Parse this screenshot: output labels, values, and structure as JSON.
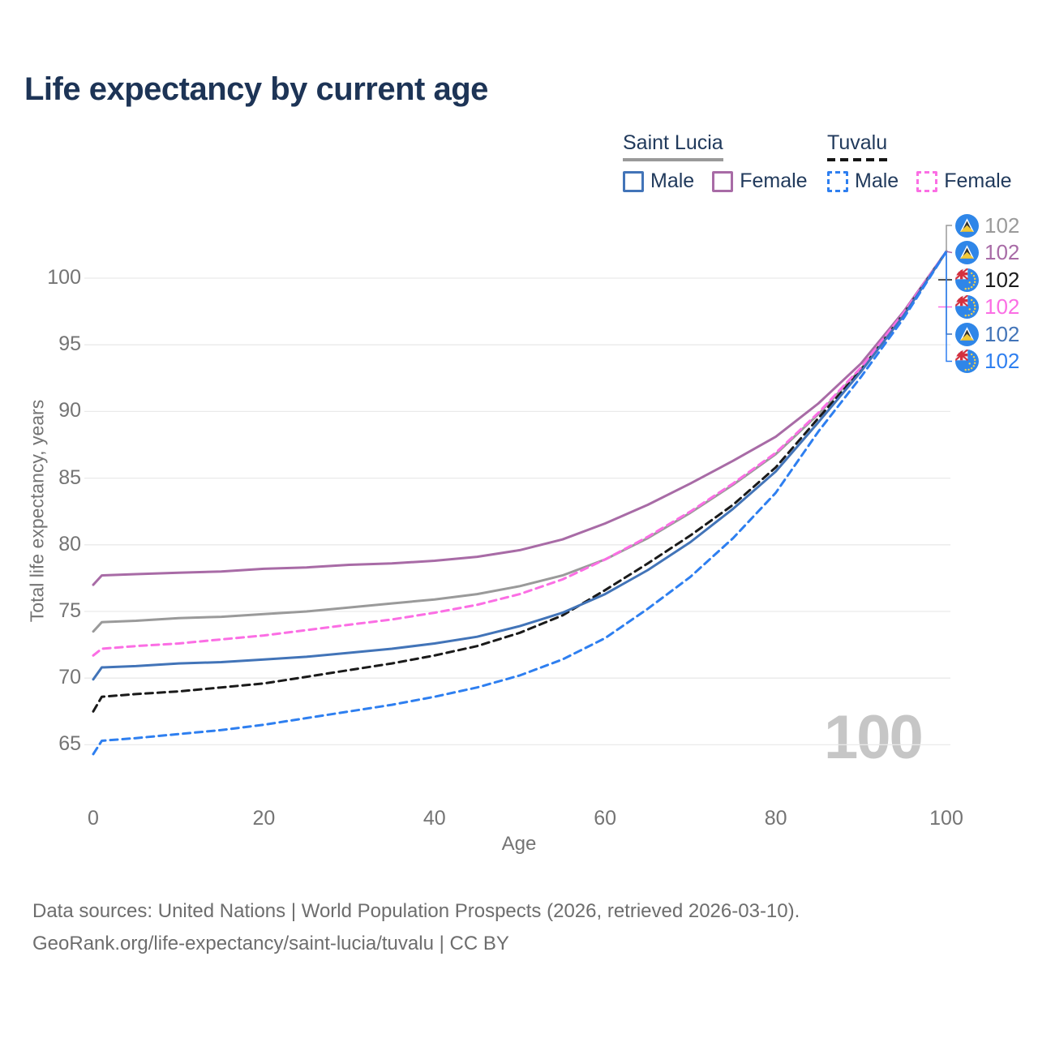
{
  "page": {
    "title": "Life expectancy by current age",
    "footer_line1": "Data sources: United Nations | World Population Prospects (2026, retrieved 2026-03-10).",
    "footer_line2": "GeoRank.org/life-expectancy/saint-lucia/tuvalu | CC BY"
  },
  "legend": {
    "groups": [
      {
        "label": "Saint Lucia",
        "underline_style": "solid",
        "underline_color": "#9a9a9a",
        "items": [
          {
            "label": "Male",
            "color": "#4274b8",
            "dash": "solid"
          },
          {
            "label": "Female",
            "color": "#a86ba6",
            "dash": "solid"
          }
        ]
      },
      {
        "label": "Tuvalu",
        "underline_style": "dashed",
        "underline_color": "#161616",
        "items": [
          {
            "label": "Male",
            "color": "#2e7ff0",
            "dash": "dashed"
          },
          {
            "label": "Female",
            "color": "#fb6ee4",
            "dash": "dashed"
          }
        ]
      }
    ]
  },
  "chart_data": {
    "type": "line",
    "title": "Life expectancy by current age",
    "xlabel": "Age",
    "ylabel": "Total life expectancy, years",
    "xlim": [
      0,
      100
    ],
    "ylim": [
      62,
      103
    ],
    "xticks": [
      0,
      20,
      40,
      60,
      80,
      100
    ],
    "yticks": [
      65,
      70,
      75,
      80,
      85,
      90,
      95,
      100
    ],
    "grid": "horizontal",
    "legend_position": "top-right",
    "age_cursor_label": "100",
    "x": [
      0,
      1,
      5,
      10,
      15,
      20,
      25,
      30,
      35,
      40,
      45,
      50,
      55,
      60,
      65,
      70,
      75,
      80,
      85,
      90,
      95,
      100
    ],
    "series": [
      {
        "id": "saint-lucia-total",
        "name": "Saint Lucia (both sexes)",
        "country": "Saint Lucia",
        "flag": "saint-lucia",
        "color": "#9a9a9a",
        "dash": "solid",
        "end_label": "102",
        "values": [
          73.5,
          74.2,
          74.3,
          74.5,
          74.6,
          74.8,
          75.0,
          75.3,
          75.6,
          75.9,
          76.3,
          76.9,
          77.7,
          78.9,
          80.5,
          82.4,
          84.5,
          86.8,
          89.8,
          93.2,
          97.3,
          102
        ]
      },
      {
        "id": "saint-lucia-female",
        "name": "Saint Lucia Female",
        "country": "Saint Lucia",
        "flag": "saint-lucia",
        "color": "#a86ba6",
        "dash": "solid",
        "end_label": "102",
        "values": [
          77.0,
          77.7,
          77.8,
          77.9,
          78.0,
          78.2,
          78.3,
          78.5,
          78.6,
          78.8,
          79.1,
          79.6,
          80.4,
          81.6,
          83.0,
          84.6,
          86.3,
          88.1,
          90.6,
          93.6,
          97.5,
          102
        ]
      },
      {
        "id": "tuvalu-total",
        "name": "Tuvalu (both sexes)",
        "country": "Tuvalu",
        "flag": "tuvalu",
        "color": "#1a1a1a",
        "dash": "dashed",
        "end_label": "102",
        "values": [
          67.5,
          68.6,
          68.8,
          69.0,
          69.3,
          69.6,
          70.1,
          70.6,
          71.1,
          71.7,
          72.4,
          73.4,
          74.7,
          76.6,
          78.6,
          80.7,
          83.0,
          85.8,
          89.5,
          93.1,
          97.3,
          102
        ]
      },
      {
        "id": "tuvalu-female",
        "name": "Tuvalu Female",
        "country": "Tuvalu",
        "flag": "tuvalu",
        "color": "#fb6ee4",
        "dash": "dashed",
        "end_label": "102",
        "values": [
          71.7,
          72.2,
          72.4,
          72.6,
          72.9,
          73.2,
          73.6,
          74.0,
          74.4,
          74.9,
          75.5,
          76.3,
          77.4,
          78.9,
          80.6,
          82.5,
          84.6,
          86.9,
          89.9,
          93.3,
          97.4,
          102
        ]
      },
      {
        "id": "saint-lucia-male",
        "name": "Saint Lucia Male",
        "country": "Saint Lucia",
        "flag": "saint-lucia",
        "color": "#4274b8",
        "dash": "solid",
        "end_label": "102",
        "values": [
          69.9,
          70.8,
          70.9,
          71.1,
          71.2,
          71.4,
          71.6,
          71.9,
          72.2,
          72.6,
          73.1,
          73.9,
          74.9,
          76.3,
          78.1,
          80.2,
          82.7,
          85.5,
          89.2,
          93.0,
          97.2,
          102
        ]
      },
      {
        "id": "tuvalu-male",
        "name": "Tuvalu Male",
        "country": "Tuvalu",
        "flag": "tuvalu",
        "color": "#2e7ff0",
        "dash": "dashed",
        "end_label": "102",
        "values": [
          64.3,
          65.3,
          65.5,
          65.8,
          66.1,
          66.5,
          67.0,
          67.5,
          68.0,
          68.6,
          69.3,
          70.2,
          71.4,
          73.0,
          75.2,
          77.6,
          80.5,
          83.9,
          88.5,
          92.6,
          97.0,
          102
        ]
      }
    ]
  }
}
